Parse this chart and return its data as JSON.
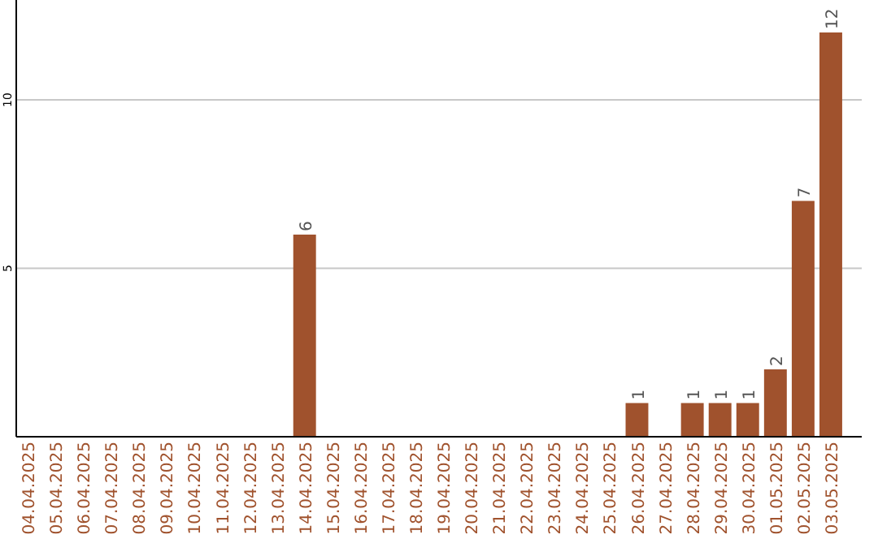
{
  "chart_data": {
    "type": "bar",
    "categories": [
      "04.04.2025",
      "05.04.2025",
      "06.04.2025",
      "07.04.2025",
      "08.04.2025",
      "09.04.2025",
      "10.04.2025",
      "11.04.2025",
      "12.04.2025",
      "13.04.2025",
      "14.04.2025",
      "15.04.2025",
      "16.04.2025",
      "17.04.2025",
      "18.04.2025",
      "19.04.2025",
      "20.04.2025",
      "21.04.2025",
      "22.04.2025",
      "23.04.2025",
      "24.04.2025",
      "25.04.2025",
      "26.04.2025",
      "27.04.2025",
      "28.04.2025",
      "29.04.2025",
      "30.04.2025",
      "01.05.2025",
      "02.05.2025",
      "03.05.2025"
    ],
    "values": [
      0,
      0,
      0,
      0,
      0,
      0,
      0,
      0,
      0,
      0,
      6,
      0,
      0,
      0,
      0,
      0,
      0,
      0,
      0,
      0,
      0,
      0,
      1,
      0,
      1,
      1,
      1,
      2,
      7,
      12
    ],
    "value_labels": [
      null,
      null,
      null,
      null,
      null,
      null,
      null,
      null,
      null,
      null,
      "6",
      null,
      null,
      null,
      null,
      null,
      null,
      null,
      null,
      null,
      null,
      null,
      "1",
      null,
      "1",
      "1",
      "1",
      "2",
      "7",
      "12"
    ],
    "color": "#a0522d",
    "ylim": [
      0,
      12
    ],
    "yticks": [
      5,
      10
    ],
    "grid": "y"
  }
}
